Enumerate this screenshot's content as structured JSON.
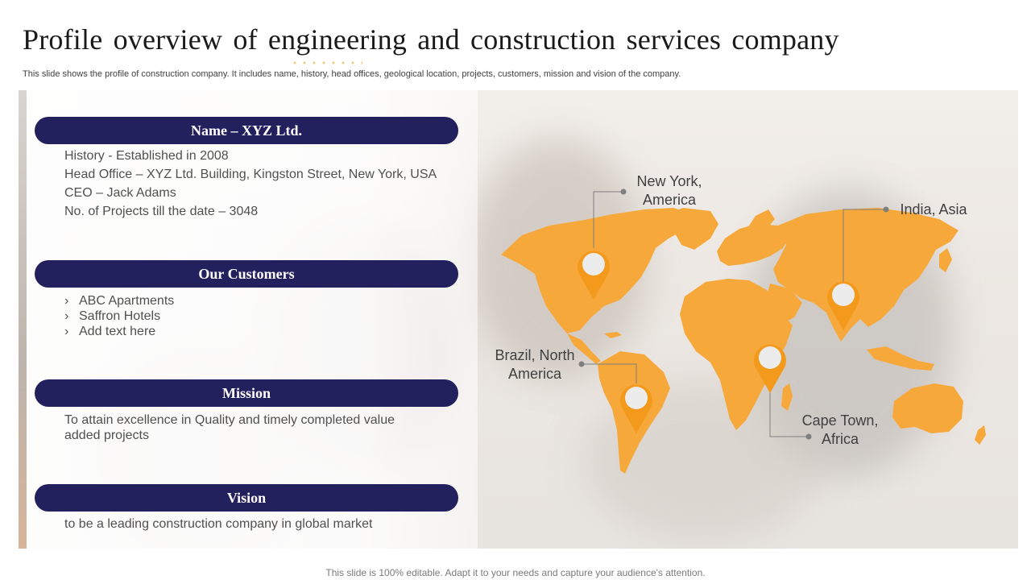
{
  "slide": {
    "title": "Profile overview of engineering and construction services company",
    "subtitle": "This slide shows the profile of construction company. It includes name, history, head offices, geological location, projects, customers, mission and vision of the company.",
    "footer": "This slide is 100% editable. Adapt it to your needs and capture your audience's attention."
  },
  "sections": {
    "name": {
      "header": "Name – XYZ Ltd.",
      "lines": [
        "History  - Established in 2008",
        "Head Office  – XYZ Ltd. Building, Kingston Street, New York, USA",
        "CEO – Jack Adams",
        "No. of Projects till the date – 3048"
      ]
    },
    "customers": {
      "header": "Our Customers",
      "bullet_glyph": "›",
      "items": [
        "ABC Apartments",
        "Saffron Hotels",
        "Add text here"
      ]
    },
    "mission": {
      "header": "Mission",
      "lines": [
        "To attain excellence in Quality and timely completed value",
        "added projects"
      ]
    },
    "vision": {
      "header": "Vision",
      "lines": [
        "to be a leading construction company in global market"
      ]
    }
  },
  "map": {
    "land_color": "#f7a83a",
    "pin_color": "#f39a1c",
    "locations": {
      "new_york": [
        "New York,",
        "America"
      ],
      "india": [
        "India, Asia"
      ],
      "brazil": [
        "Brazil, North",
        "America"
      ],
      "cape_town": [
        "Cape Town,",
        "Africa"
      ]
    }
  }
}
